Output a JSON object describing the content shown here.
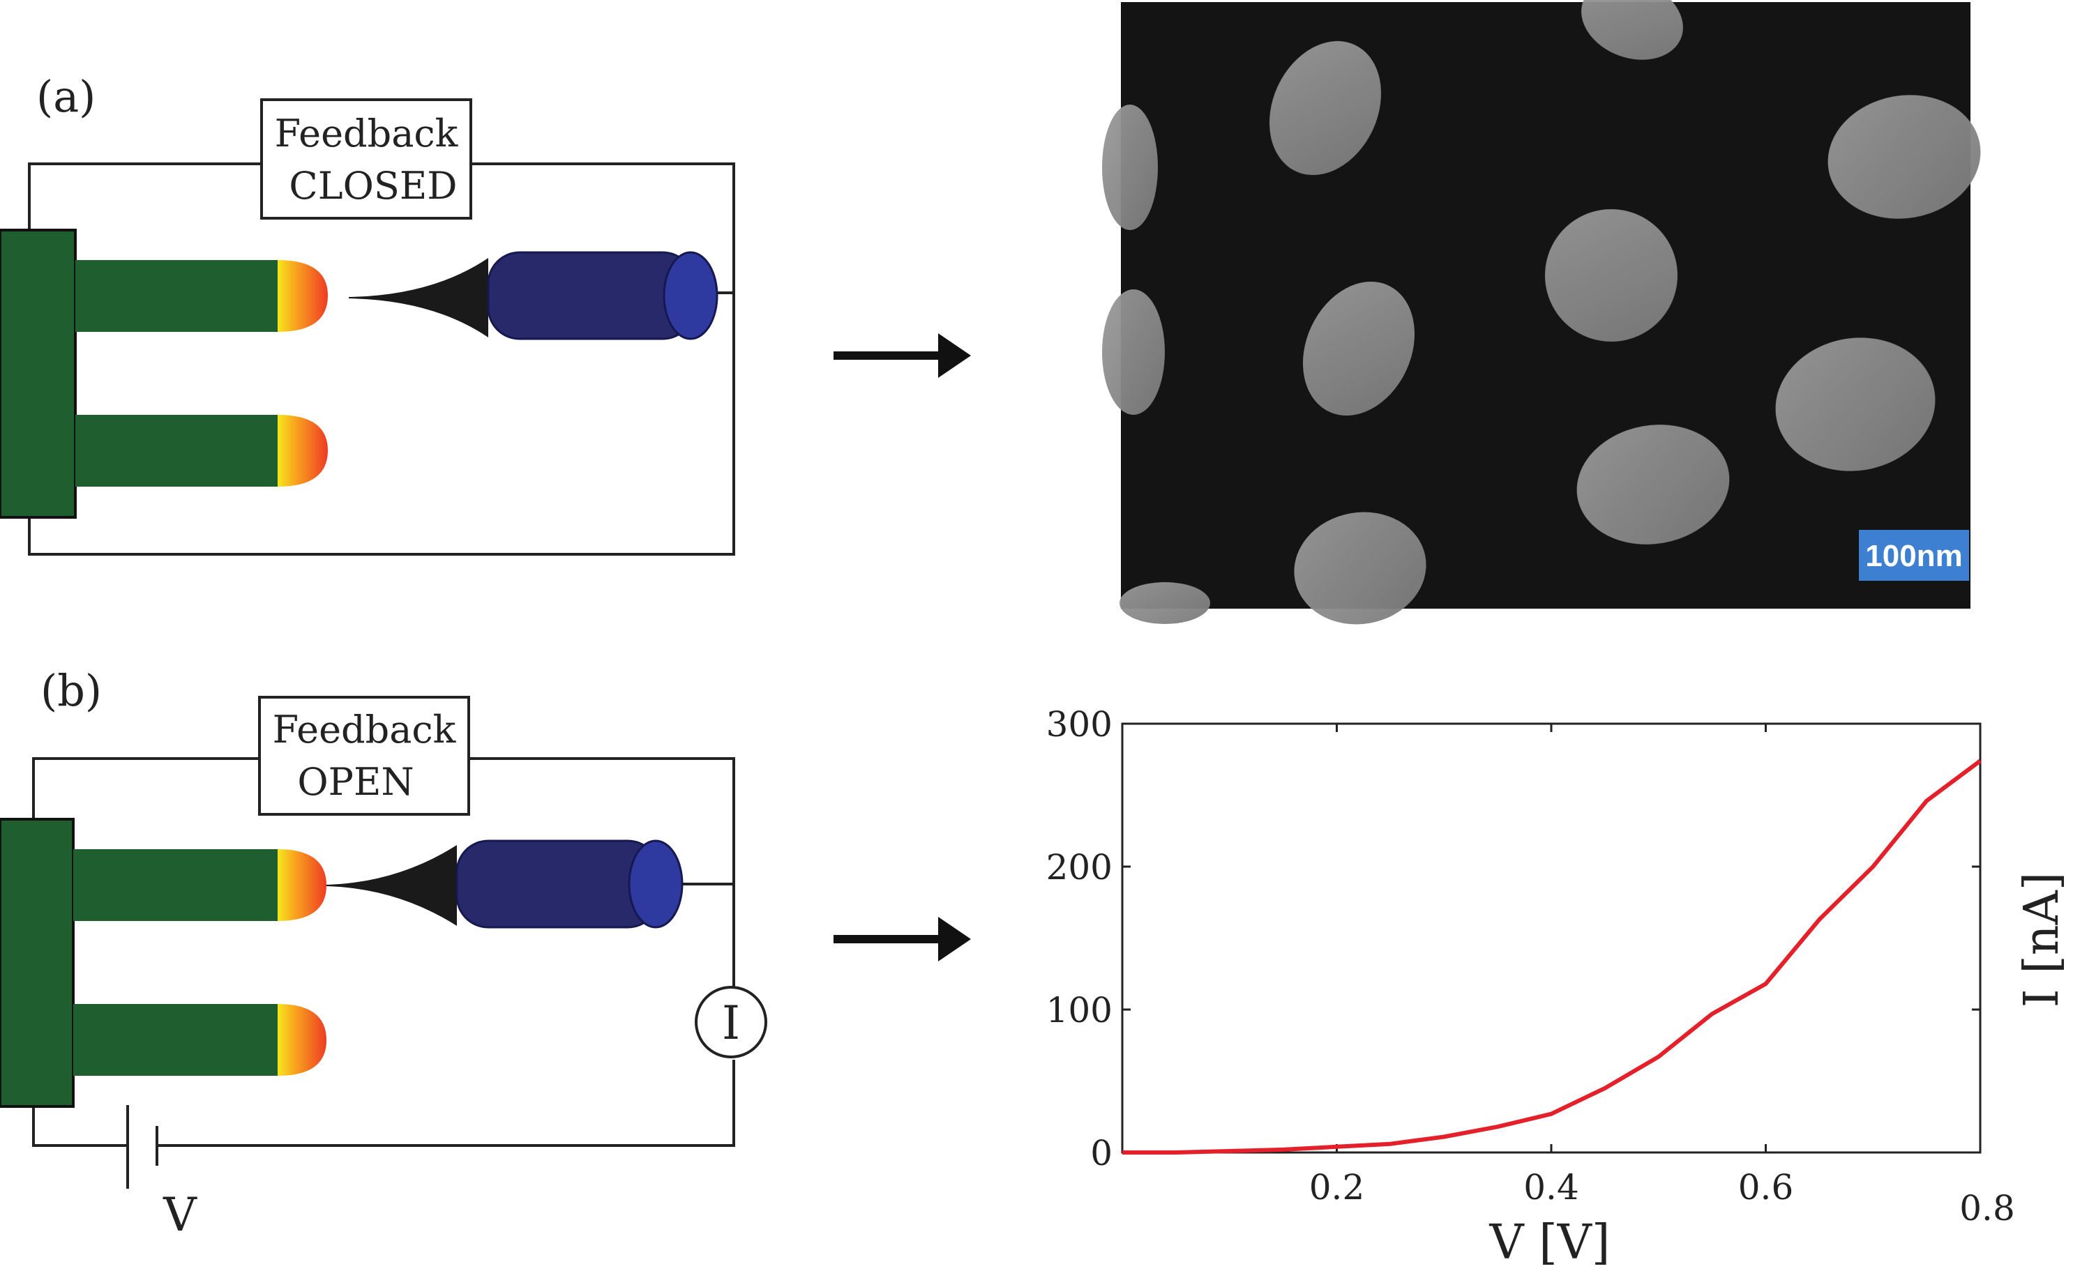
{
  "panels": {
    "a": {
      "label": "(a)",
      "feedback_line1": "Feedback",
      "feedback_line2": "CLOSED"
    },
    "b": {
      "label": "(b)",
      "feedback_line1": "Feedback",
      "feedback_line2": "OPEN",
      "meter_label": "I",
      "battery_label": "V"
    }
  },
  "image": {
    "scale_bar_label": "100nm",
    "background": "#141414",
    "scale_bar_color": "#3d7fd0"
  },
  "colors": {
    "substrate": "#1f5e2f",
    "tip": "#27296b",
    "tip_end": "#2f3aa0",
    "curve": "#e4202a"
  },
  "chart_data": {
    "type": "line",
    "title": "",
    "xlabel": "V [V]",
    "ylabel": "I [nA]",
    "xlim": [
      0,
      0.8
    ],
    "ylim": [
      0,
      300
    ],
    "x_ticks": [
      "0.2",
      "0.4",
      "0.6",
      "0.8"
    ],
    "y_ticks": [
      "0",
      "100",
      "200",
      "300"
    ],
    "series": [
      {
        "x": [
          0,
          0.05,
          0.1,
          0.15,
          0.2,
          0.25,
          0.3,
          0.35,
          0.4,
          0.45,
          0.5,
          0.55,
          0.6,
          0.65,
          0.7,
          0.75,
          0.8
        ],
        "y": [
          0,
          0,
          1,
          2,
          4,
          6,
          11,
          18,
          27,
          45,
          67,
          97,
          118,
          163,
          200,
          246,
          274
        ]
      }
    ]
  }
}
